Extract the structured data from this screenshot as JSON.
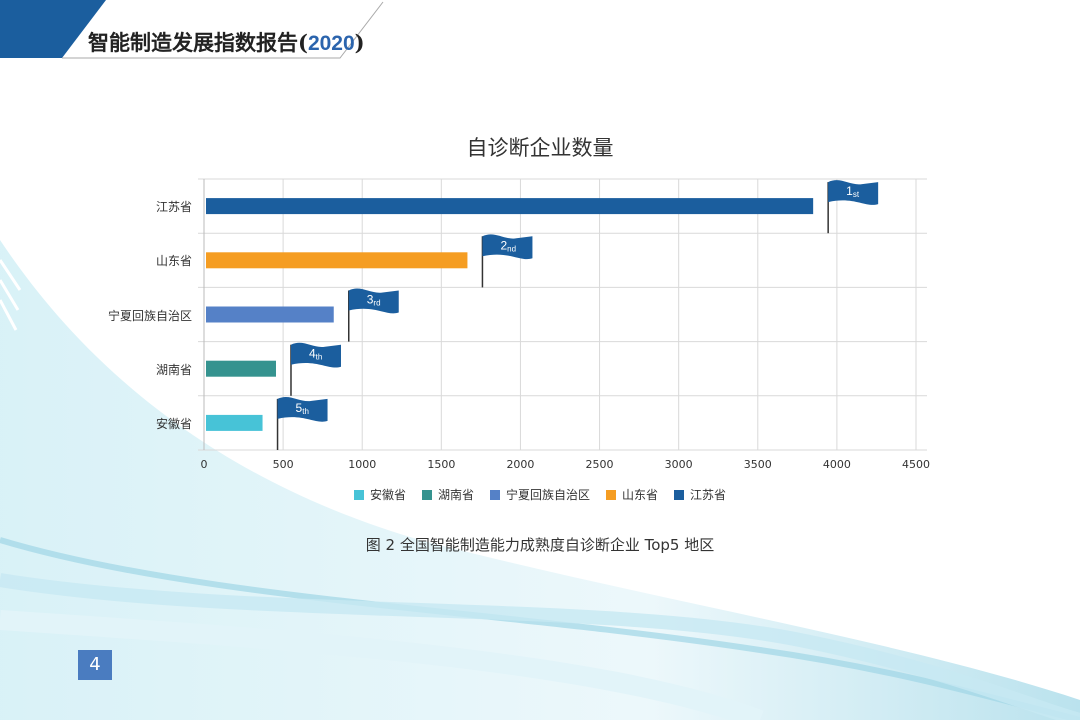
{
  "header": {
    "title": "智能制造发展指数报告",
    "year_open": "(",
    "year": "2020",
    "year_close": ")"
  },
  "chart_data": {
    "type": "bar",
    "orientation": "horizontal",
    "title": "自诊断企业数量",
    "categories": [
      "江苏省",
      "山东省",
      "宁夏回族自治区",
      "湖南省",
      "安徽省"
    ],
    "values": [
      3850,
      1665,
      820,
      455,
      370
    ],
    "colors": [
      "#1b5e9e",
      "#f59d22",
      "#5581c7",
      "#35938f",
      "#47c3d7"
    ],
    "rank_flags": [
      {
        "num": "1",
        "suffix": "st"
      },
      {
        "num": "2",
        "suffix": "nd"
      },
      {
        "num": "3",
        "suffix": "rd"
      },
      {
        "num": "4",
        "suffix": "th"
      },
      {
        "num": "5",
        "suffix": "th"
      }
    ],
    "flag_color": "#1b5e9e",
    "xlim": [
      0,
      4500
    ],
    "xticks": [
      "0",
      "500",
      "1000",
      "1500",
      "2000",
      "2500",
      "3000",
      "3500",
      "4000",
      "4500"
    ],
    "grid": true,
    "legend": {
      "placement": "bottom",
      "entries": [
        "安徽省",
        "湖南省",
        "宁夏回族自治区",
        "山东省",
        "江苏省"
      ]
    }
  },
  "caption": "图 2 全国智能制造能力成熟度自诊断企业 Top5 地区",
  "page_number": "4"
}
